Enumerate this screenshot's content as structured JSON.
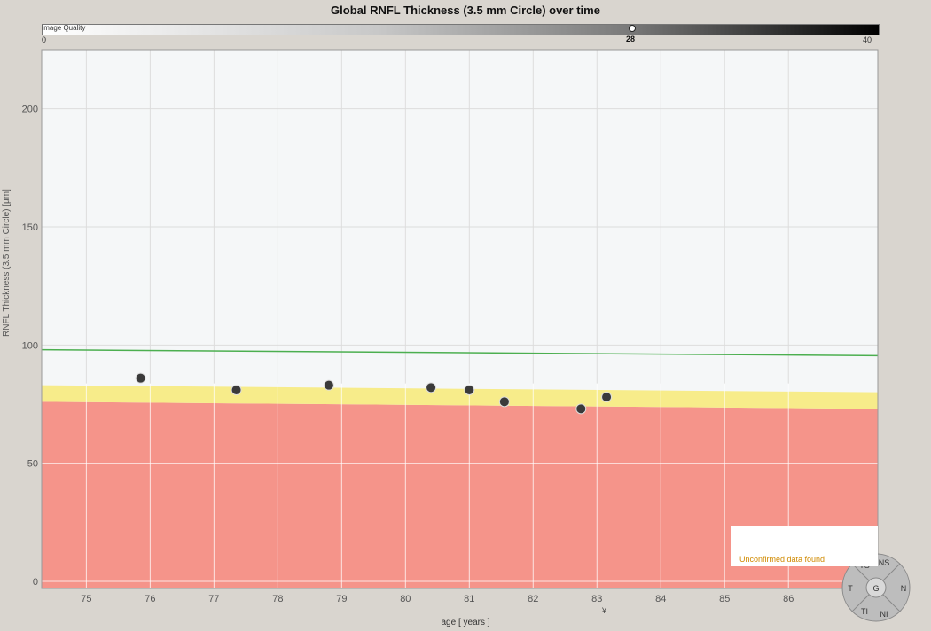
{
  "chart_data": {
    "type": "scatter",
    "title": "Global RNFL Thickness (3.5 mm Circle) over time",
    "xlabel": "age [ years ]",
    "ylabel": "RNFL Thickness (3.5 mm Circle) [µm]",
    "xlim": [
      74.3,
      87.4
    ],
    "ylim": [
      -3,
      225
    ],
    "x_ticks": [
      75,
      76,
      77,
      78,
      79,
      80,
      81,
      82,
      83,
      84,
      85,
      86
    ],
    "y_ticks": [
      0,
      50,
      100,
      150,
      200
    ],
    "grid": true,
    "points": [
      {
        "x": 75.85,
        "y": 86
      },
      {
        "x": 77.35,
        "y": 81
      },
      {
        "x": 78.8,
        "y": 83
      },
      {
        "x": 80.4,
        "y": 82
      },
      {
        "x": 81.0,
        "y": 81
      },
      {
        "x": 81.55,
        "y": 76
      },
      {
        "x": 82.75,
        "y": 73
      },
      {
        "x": 83.15,
        "y": 78
      }
    ],
    "normal_line": {
      "x": [
        74.3,
        87.4
      ],
      "y": [
        98,
        95.5
      ],
      "color": "#4caf50"
    },
    "borderline_band": {
      "x": [
        74.3,
        87.4
      ],
      "upper": [
        83,
        80
      ],
      "lower": [
        76,
        73
      ],
      "color": "#f7ec8a"
    },
    "abnormal_band": {
      "x": [
        74.3,
        87.4
      ],
      "upper": [
        76,
        73
      ],
      "lower": [
        -3,
        -3
      ],
      "color": "#f5948a"
    }
  },
  "image_quality": {
    "label": "Image Quality",
    "min": "0",
    "value": "28",
    "max": "40"
  },
  "notice": "Unconfirmed data found",
  "x_marker": "¥",
  "compass": {
    "labels": [
      "TS",
      "NS",
      "T",
      "G",
      "N",
      "TI",
      "NI"
    ]
  },
  "colors": {
    "background": "#d9d5cf",
    "plot_bg": "#f5f7f8",
    "point": "#3a3a3a",
    "grid": "#dcdcdc"
  }
}
